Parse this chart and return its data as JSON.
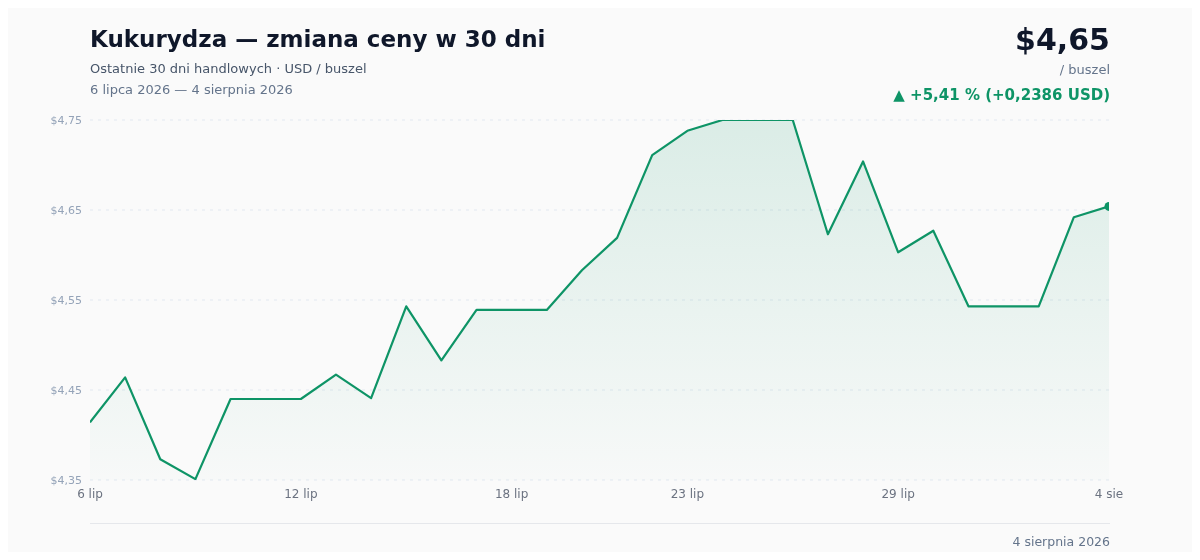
{
  "chart_data": {
    "type": "area",
    "title": "Kukurydza — zmiana ceny w 30 dni",
    "subtitle": "Ostatnie 30 dni handlowych · USD / buszel",
    "annotations": [
      "6 lipca 2026 — 4 sierpnia 2026",
      "$4,65",
      "/ buszel",
      "▲ +5,41 % (+0,2386 USD)",
      "4 sierpnia 2026"
    ],
    "categories": [
      "6 lip",
      null,
      null,
      null,
      null,
      null,
      "12 lip",
      null,
      null,
      null,
      null,
      null,
      "18 lip",
      null,
      null,
      null,
      null,
      "23 lip",
      null,
      null,
      null,
      null,
      null,
      "29 lip",
      null,
      null,
      null,
      null,
      null,
      "4 sie"
    ],
    "series": [
      {
        "color": "#0e9466",
        "values": [
          4.414,
          4.464,
          4.373,
          4.351,
          4.44,
          4.44,
          4.44,
          4.467,
          4.441,
          4.543,
          4.483,
          4.539,
          4.539,
          4.539,
          4.583,
          4.619,
          4.711,
          4.738,
          4.75,
          4.75,
          4.75,
          4.623,
          4.704,
          4.603,
          4.627,
          4.543,
          4.543,
          4.543,
          4.642,
          4.654
        ]
      },
      {
        "type": "scatter",
        "marker": "circle",
        "color": "#0e9466",
        "x": [
          "4 sie"
        ],
        "values": [
          4.654
        ]
      }
    ],
    "ylim": [
      4.35,
      4.75
    ],
    "yticks": [
      {
        "value": 4.35,
        "label": "$4,35"
      },
      {
        "value": 4.45,
        "label": "$4,45"
      },
      {
        "value": 4.55,
        "label": "$4,55"
      },
      {
        "value": 4.65,
        "label": "$4,65"
      },
      {
        "value": 4.75,
        "label": "$4,75"
      }
    ],
    "grid": "y",
    "legend": false,
    "line_style": "solid"
  }
}
